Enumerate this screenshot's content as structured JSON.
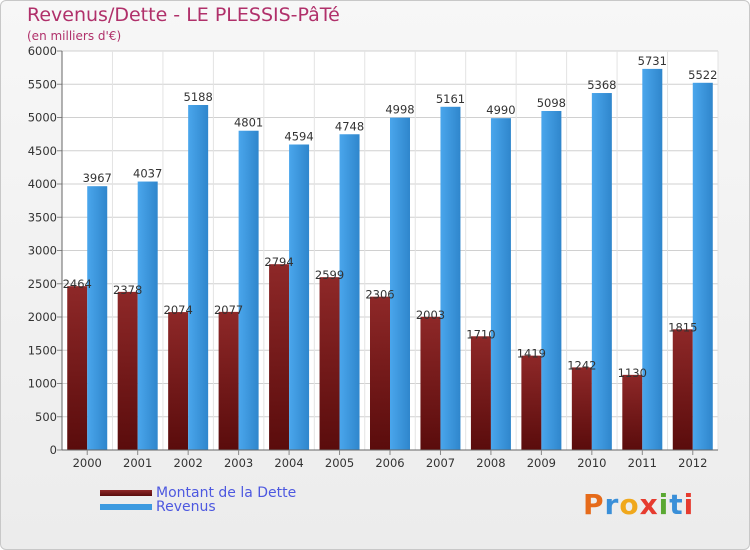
{
  "title": "Revenus/Dette - LE PLESSIS-PâTé",
  "subtitle": "(en milliers d'€)",
  "logo": {
    "letters": [
      "P",
      "r",
      "o",
      "x",
      "i",
      "t",
      "i"
    ],
    "colors": [
      "#e66b1a",
      "#3a8fd8",
      "#f0a81c",
      "#e63b2f",
      "#5aa832",
      "#3a8fd8",
      "#e63b2f"
    ]
  },
  "legend": [
    "Montant de la Dette",
    "Revenus"
  ],
  "colors": {
    "dette": "#7a1a1a",
    "revenus": "#3d9ae0",
    "legend_text": "#4d58e0",
    "title": "#b0306a"
  },
  "chart_data": {
    "type": "bar",
    "categories": [
      "2000",
      "2001",
      "2002",
      "2003",
      "2004",
      "2005",
      "2006",
      "2007",
      "2008",
      "2009",
      "2010",
      "2011",
      "2012"
    ],
    "series": [
      {
        "name": "Montant de la Dette",
        "values": [
          2464,
          2378,
          2074,
          2077,
          2794,
          2599,
          2306,
          2003,
          1710,
          1419,
          1242,
          1130,
          1815
        ]
      },
      {
        "name": "Revenus",
        "values": [
          3967,
          4037,
          5188,
          4801,
          4594,
          4748,
          4998,
          5161,
          4990,
          5098,
          5368,
          5731,
          5522
        ]
      }
    ],
    "ylim": [
      0,
      6000
    ],
    "yticks": [
      0,
      500,
      1000,
      1500,
      2000,
      2500,
      3000,
      3500,
      4000,
      4500,
      5000,
      5500,
      6000
    ],
    "grid": true
  }
}
